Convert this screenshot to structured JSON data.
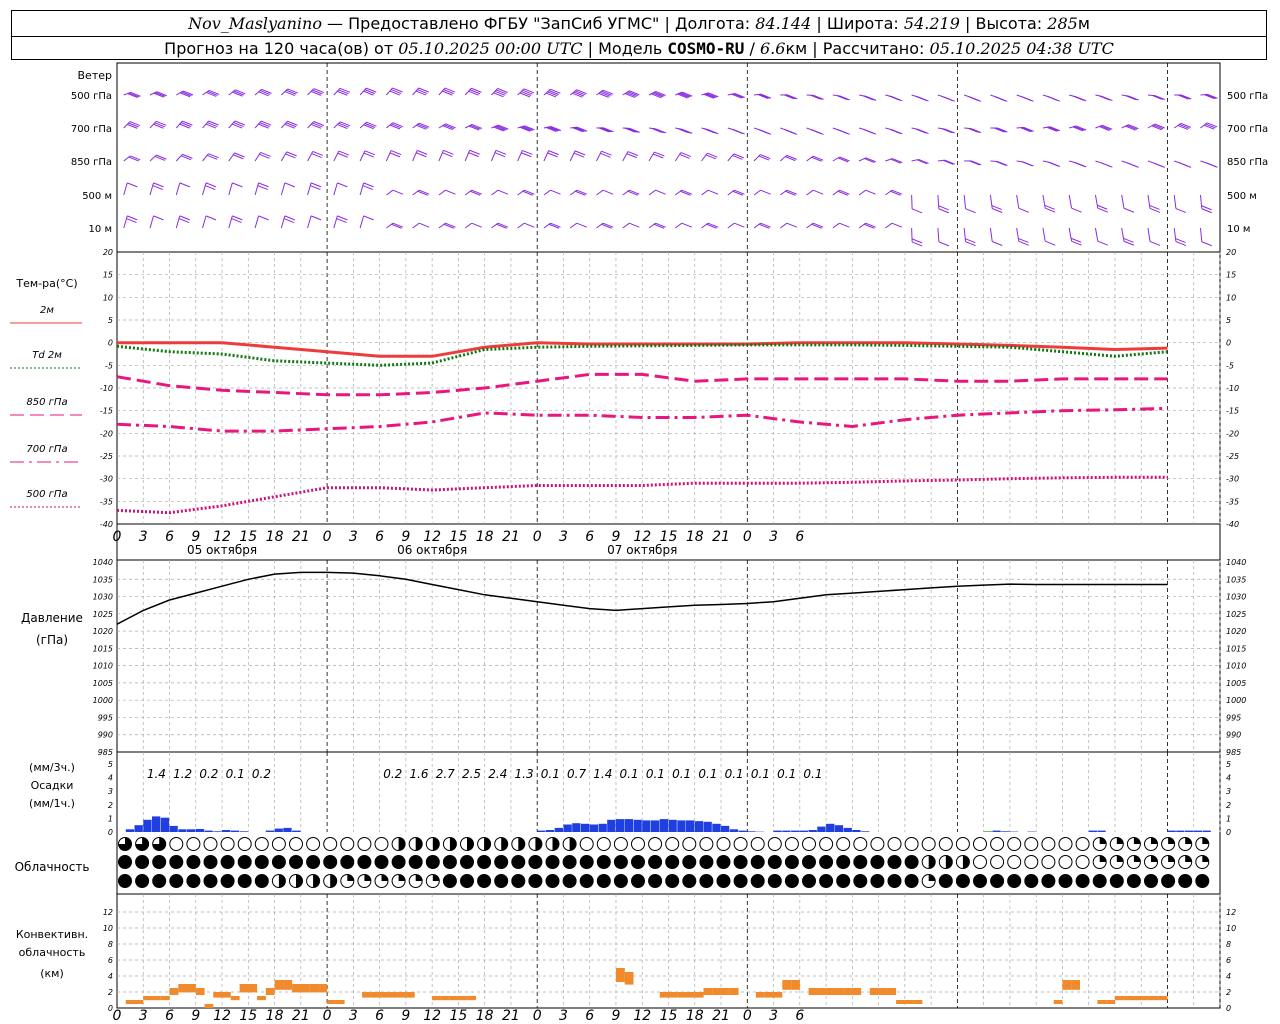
{
  "header": {
    "station": "Nov_Maslyanino",
    "provider": "Предоставлено ФГБУ \"ЗапСиб УГМС\"",
    "lon_label": "Долгота:",
    "lon": "84.144",
    "lat_label": "Широта:",
    "lat": "54.219",
    "alt_label": "Высота:",
    "alt": "285",
    "alt_unit": "м",
    "forecast_label": "Прогноз на 120 часа(ов) от",
    "forecast_start": "05.10.2025 00:00 UTC",
    "model_label": "Модель",
    "model": "COSMO-RU",
    "resolution": "6.6",
    "res_unit": "км",
    "calc_label": "Рассчитано:",
    "calc_time": "05.10.2025 04:38 UTC"
  },
  "wind": {
    "title": "Ветер",
    "levels": [
      "500 гПа",
      "700 гПа",
      "850 гПа",
      "500 м",
      "10  м"
    ],
    "color": "#8a2be2"
  },
  "temperature": {
    "title": "Тем-ра(°С)",
    "legend": [
      {
        "label": "2м",
        "color": "#ee3b3b",
        "style": "solid"
      },
      {
        "label": "Td  2м",
        "color": "#117711",
        "style": "dot"
      },
      {
        "label": "850 гПа",
        "color": "#e8177e",
        "style": "dash"
      },
      {
        "label": "700 гПа",
        "color": "#e8177e",
        "style": "dashdot"
      },
      {
        "label": "500 гПа",
        "color": "#cc1177",
        "style": "dot"
      }
    ],
    "yticks": [
      "20",
      "15",
      "10",
      "5",
      "0",
      "-5",
      "-10",
      "-15",
      "-20",
      "-25",
      "-30",
      "-35",
      "-40"
    ]
  },
  "time_axis": {
    "hours": [
      "0",
      "3",
      "6",
      "9",
      "12",
      "15",
      "18",
      "21",
      "0",
      "3",
      "6",
      "9",
      "12",
      "15",
      "18",
      "21",
      "0",
      "3",
      "6",
      "9",
      "12",
      "15",
      "18",
      "21",
      "0",
      "3",
      "6"
    ],
    "days": [
      "05 октября",
      "06 октября",
      "07 октября"
    ]
  },
  "pressure": {
    "title": "Давление",
    "unit": "(гПа)",
    "yticks": [
      "1040",
      "1035",
      "1030",
      "1025",
      "1020",
      "1015",
      "1010",
      "1005",
      "1000",
      "995",
      "990",
      "985"
    ]
  },
  "precip": {
    "unit3h": "(мм/3ч.)",
    "title": "Осадки",
    "unit1h": "(мм/1ч.)",
    "yticks": [
      "5",
      "4",
      "3",
      "2",
      "1",
      "0"
    ],
    "sums": [
      "1.4",
      "1.2",
      "0.2",
      "0.1",
      "0.2",
      "",
      "",
      "",
      "",
      "0.2",
      "1.6",
      "2.7",
      "2.5",
      "2.4",
      "1.3",
      "0.1",
      "0.7",
      "1.4",
      "0.1",
      "0.1",
      "0.1",
      "0.1",
      "0.1",
      "0.1",
      "0.1",
      "0.1"
    ]
  },
  "clouds": {
    "title": "Облачность"
  },
  "convective": {
    "title1": "Конвективн.",
    "title2": "облачность",
    "unit": "(км)",
    "yticks": [
      "12",
      "10",
      "8",
      "6",
      "4",
      "2",
      "0"
    ]
  },
  "chart_data": [
    {
      "type": "line",
      "title": "Тем-ра(°С)",
      "ylim": [
        -40,
        20
      ],
      "x_hours": [
        0,
        6,
        12,
        18,
        24,
        30,
        36,
        42,
        48,
        54,
        60,
        66,
        72,
        78,
        84,
        90,
        96,
        102,
        108,
        114,
        120
      ],
      "series": [
        {
          "name": "2м",
          "values": [
            0,
            0,
            0,
            -1,
            -2,
            -3,
            -3,
            -1,
            0,
            -0.3,
            -0.3,
            -0.3,
            -0.3,
            0,
            0,
            0,
            -0.3,
            -0.6,
            -1,
            -1.5,
            -1.2
          ]
        },
        {
          "name": "Td  2м",
          "values": [
            -0.8,
            -2,
            -2.5,
            -4,
            -4.5,
            -5,
            -4.5,
            -1.5,
            -1,
            -0.8,
            -0.7,
            -0.6,
            -0.5,
            -0.5,
            -0.5,
            -0.6,
            -0.8,
            -1,
            -2,
            -3,
            -2
          ]
        },
        {
          "name": "850 гПа",
          "values": [
            -7.5,
            -9.5,
            -10.5,
            -11,
            -11.5,
            -11.5,
            -11,
            -10,
            -8.5,
            -7,
            -7,
            -8.5,
            -8,
            -8,
            -8,
            -8,
            -8.5,
            -8.5,
            -8,
            -8,
            -8
          ]
        },
        {
          "name": "700 гПа",
          "values": [
            -18,
            -18.5,
            -19.5,
            -19.5,
            -19,
            -18.5,
            -17.5,
            -15.5,
            -16,
            -16,
            -16.5,
            -16.5,
            -16,
            -17.5,
            -18.5,
            -17,
            -16,
            -15.5,
            -15,
            -14.8,
            -14.5
          ]
        },
        {
          "name": "500 гПа",
          "values": [
            -37,
            -37.5,
            -36,
            -34,
            -32,
            -32,
            -32.5,
            -32,
            -31.5,
            -31.5,
            -31.5,
            -31,
            -31,
            -31,
            -30.8,
            -30.5,
            -30.3,
            -30,
            -29.8,
            -29.7,
            -29.7
          ]
        }
      ]
    },
    {
      "type": "line",
      "title": "Давление",
      "ylim": [
        985,
        1040
      ],
      "x_hours": [
        0,
        3,
        6,
        9,
        12,
        15,
        18,
        21,
        24,
        27,
        30,
        33,
        36,
        39,
        42,
        45,
        48,
        51,
        54,
        57,
        60,
        63,
        66,
        69,
        72,
        75,
        78,
        81,
        84,
        87,
        90,
        93,
        96,
        99,
        102,
        105,
        108,
        111,
        114,
        117,
        120
      ],
      "series": [
        {
          "name": "Давление",
          "values": [
            1022,
            1026,
            1029,
            1031,
            1033,
            1035,
            1036.5,
            1037,
            1037,
            1036.8,
            1036,
            1035,
            1033.5,
            1032,
            1030.5,
            1029.5,
            1028.5,
            1027.5,
            1026.5,
            1026,
            1026.5,
            1027,
            1027.5,
            1027.7,
            1028,
            1028.5,
            1029.5,
            1030.5,
            1031,
            1031.5,
            1032,
            1032.5,
            1033,
            1033.3,
            1033.6,
            1033.5,
            1033.5,
            1033.5,
            1033.5,
            1033.5,
            1033.5
          ]
        }
      ]
    },
    {
      "type": "bar",
      "title": "Осадки",
      "ylim": [
        0,
        5
      ],
      "x_start": 0,
      "x_step": 1,
      "values": [
        0,
        0.2,
        0.5,
        0.9,
        1.15,
        1.05,
        0.45,
        0.2,
        0.2,
        0.22,
        0.1,
        0.05,
        0.15,
        0.1,
        0.05,
        0,
        0,
        0.1,
        0.25,
        0.3,
        0.1,
        0,
        0,
        0,
        0,
        0,
        0,
        0,
        0,
        0,
        0,
        0,
        0,
        0,
        0,
        0,
        0,
        0,
        0,
        0,
        0,
        0,
        0,
        0,
        0,
        0,
        0,
        0,
        0.1,
        0.15,
        0.3,
        0.55,
        0.65,
        0.6,
        0.55,
        0.6,
        0.9,
        0.95,
        0.95,
        0.9,
        0.85,
        0.85,
        0.95,
        0.9,
        0.85,
        0.85,
        0.8,
        0.75,
        0.6,
        0.45,
        0.2,
        0.1,
        0.05,
        0.02,
        0,
        0.1,
        0.1,
        0.1,
        0.1,
        0.15,
        0.4,
        0.6,
        0.5,
        0.3,
        0.15,
        0.05,
        0,
        0,
        0,
        0,
        0,
        0,
        0,
        0,
        0,
        0,
        0,
        0,
        0,
        0.05,
        0.1,
        0.05,
        0.03,
        0,
        0.03,
        0,
        0,
        0,
        0,
        0,
        0,
        0.1,
        0.1,
        0,
        0,
        0,
        0,
        0,
        0,
        0,
        0.1,
        0.1,
        0.1,
        0.1,
        0.1
      ]
    },
    {
      "type": "bar",
      "title": "Конвективн. облачность",
      "ylim": [
        0,
        13
      ],
      "x_start": 0,
      "x_step": 1,
      "values": [
        0,
        1,
        1,
        1.5,
        1.5,
        1.5,
        2.5,
        3,
        3,
        2.5,
        0.5,
        2,
        2,
        1.5,
        3,
        3,
        1.5,
        2.5,
        3.5,
        3.5,
        3,
        3,
        3,
        3,
        1,
        1,
        0,
        0,
        2,
        2,
        2,
        2,
        2,
        2,
        0,
        0,
        1.5,
        1.5,
        1.5,
        1.5,
        1.5,
        0,
        0,
        0,
        0,
        0,
        0,
        0,
        0,
        0,
        0,
        0,
        0,
        0,
        0,
        0,
        0,
        5,
        4.5,
        0,
        0,
        0,
        2,
        2,
        2,
        2,
        2,
        2.5,
        2.5,
        2.5,
        2.5,
        0,
        0,
        2,
        2,
        2,
        3.5,
        3.5,
        0,
        2.5,
        2.5,
        2.5,
        2.5,
        2.5,
        2.5,
        0,
        2.5,
        2.5,
        2.5,
        1,
        1,
        1,
        0,
        0,
        0,
        0,
        0,
        0,
        0,
        0,
        0,
        0,
        0,
        0,
        0,
        0,
        0,
        1,
        3.5,
        3.5,
        0,
        0,
        1,
        1,
        1.5,
        1.5,
        1.5,
        1.5,
        1.5,
        1.5,
        0,
        0,
        0,
        0,
        0,
        0,
        0
      ]
    }
  ]
}
